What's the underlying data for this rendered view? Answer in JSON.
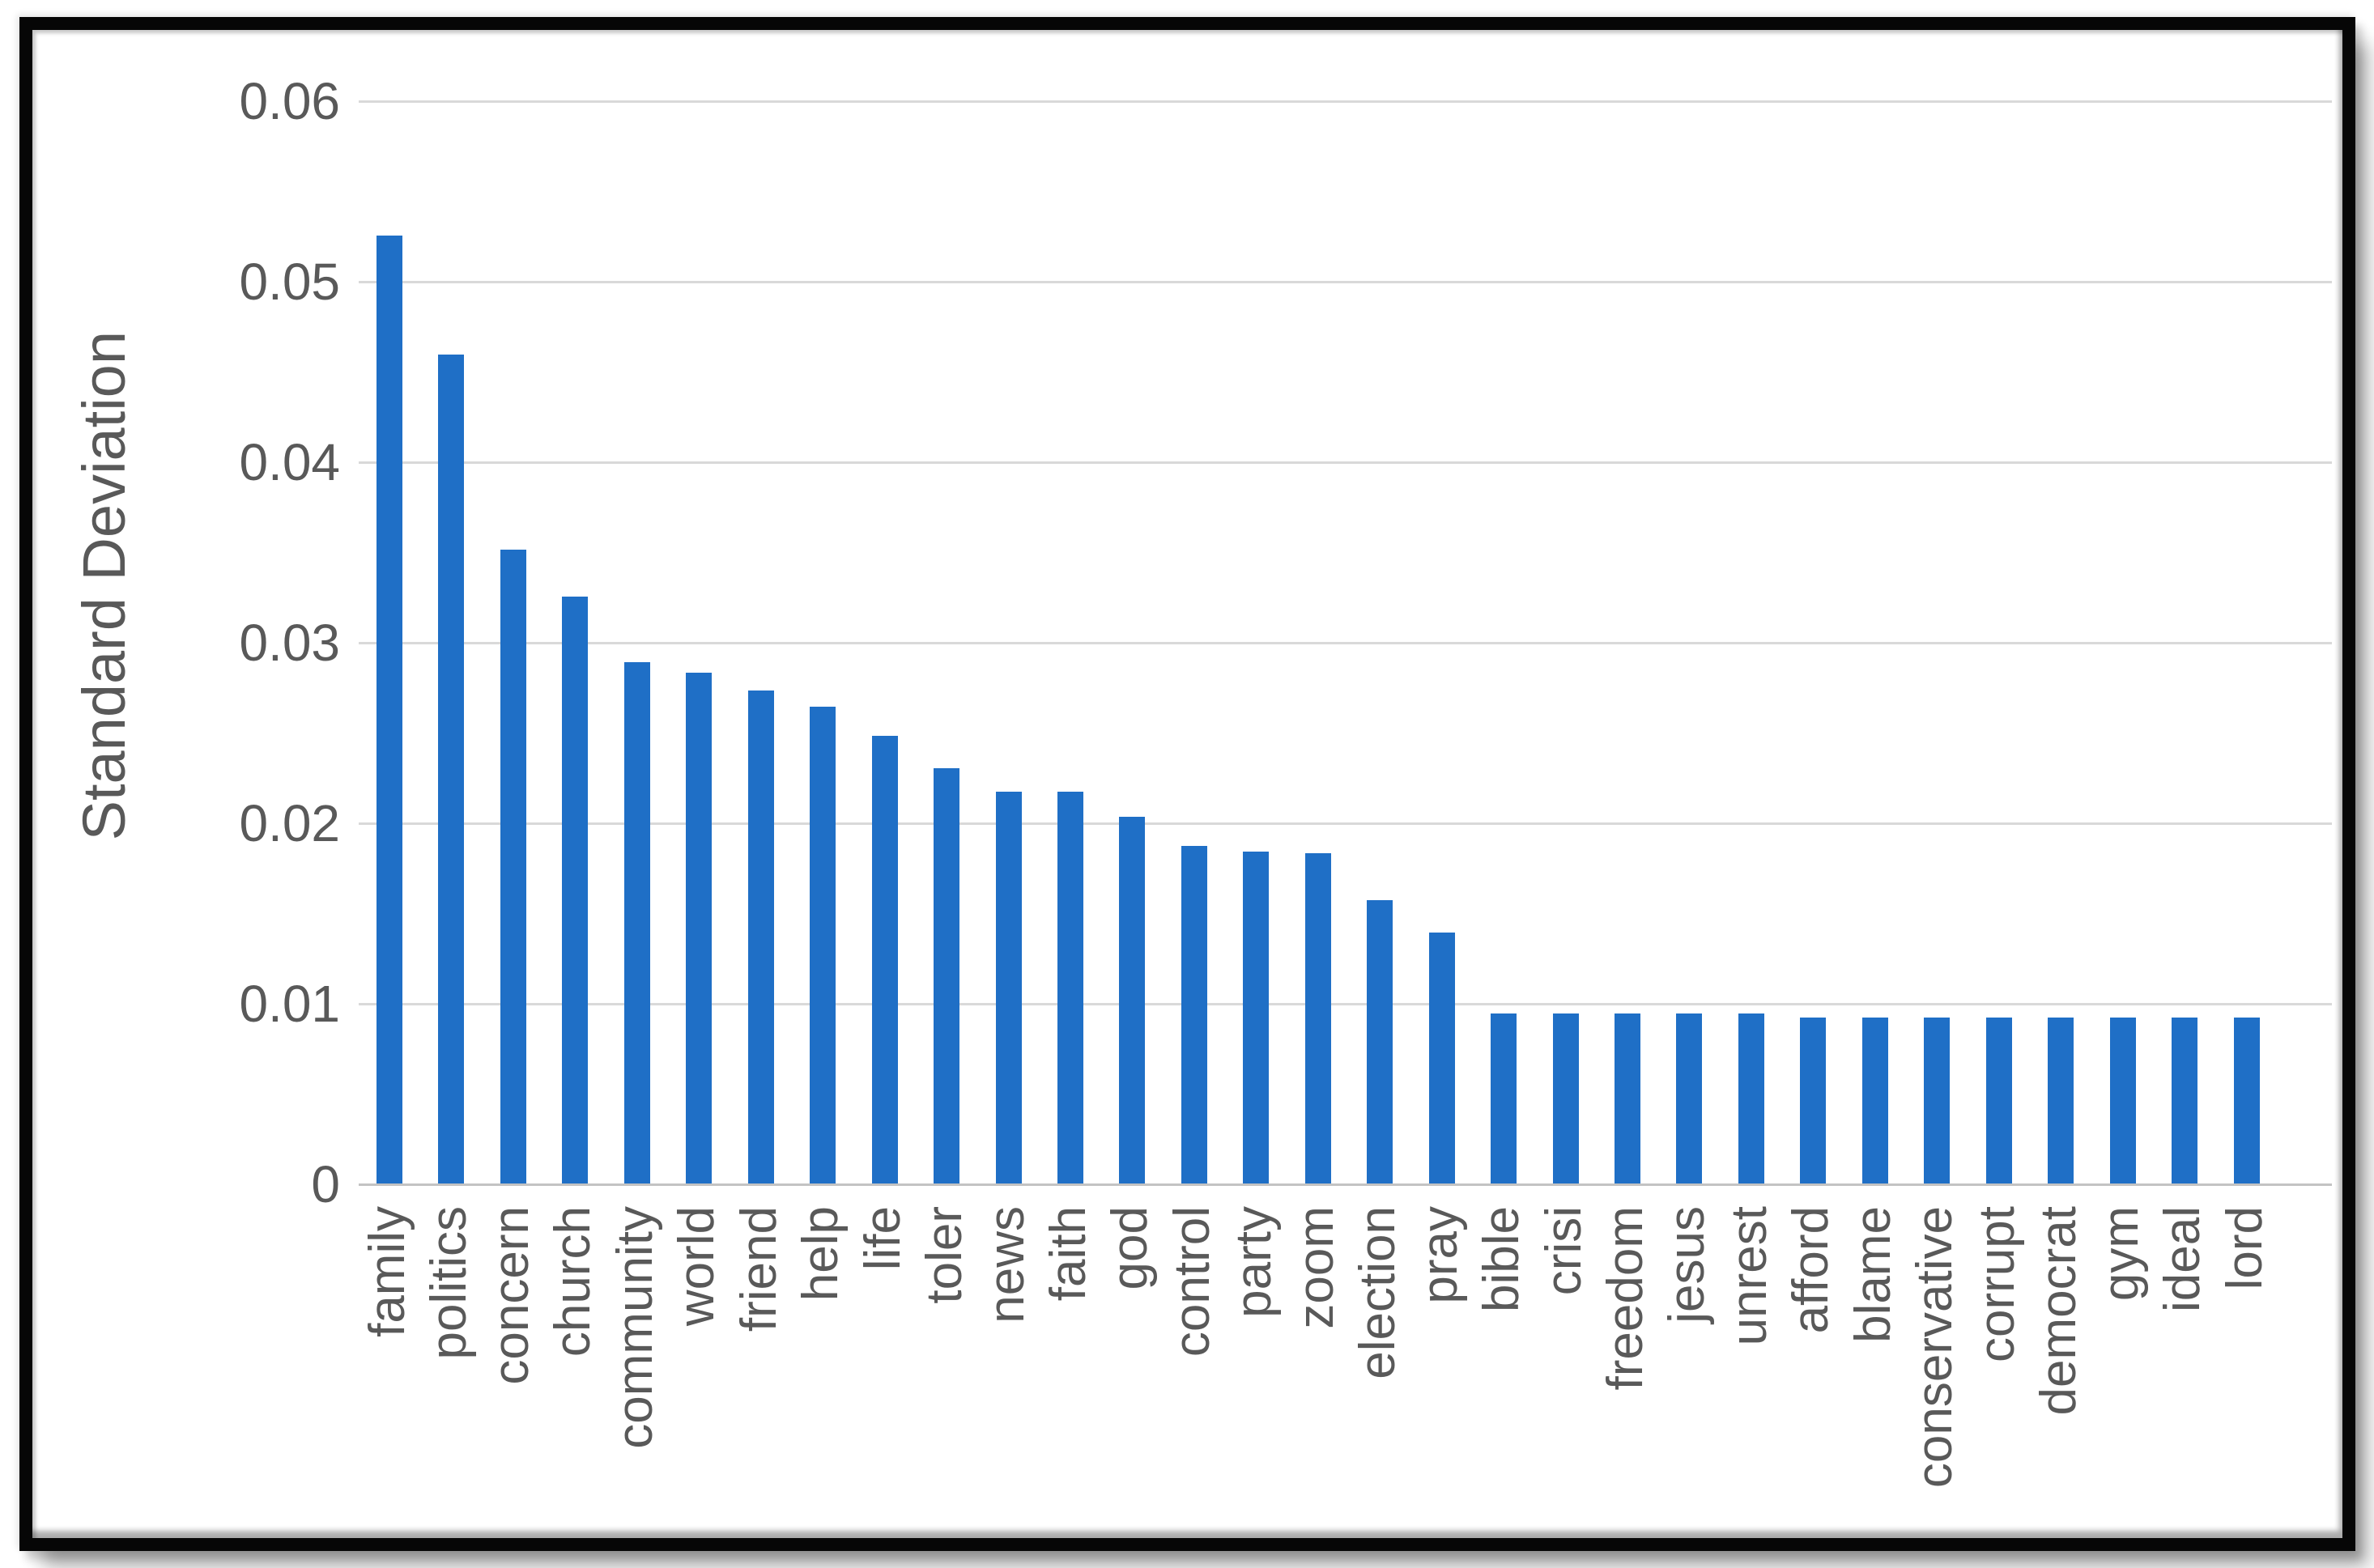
{
  "chart_data": {
    "type": "bar",
    "title": "",
    "xlabel": "",
    "ylabel": "Standard Deviation",
    "categories": [
      "family",
      "politics",
      "concern",
      "church",
      "community",
      "world",
      "friend",
      "help",
      "life",
      "toler",
      "news",
      "faith",
      "god",
      "control",
      "party",
      "zoom",
      "election",
      "pray",
      "bible",
      "crisi",
      "freedom",
      "jesus",
      "unrest",
      "afford",
      "blame",
      "conservative",
      "corrupt",
      "democrat",
      "gym",
      "ideal",
      "lord"
    ],
    "values": [
      0.0525,
      0.0459,
      0.0351,
      0.0325,
      0.0289,
      0.0283,
      0.0273,
      0.0264,
      0.0248,
      0.023,
      0.0217,
      0.0217,
      0.0203,
      0.0187,
      0.0184,
      0.0183,
      0.0157,
      0.0139,
      0.0094,
      0.0094,
      0.0094,
      0.0094,
      0.0094,
      0.0092,
      0.0092,
      0.0092,
      0.0092,
      0.0092,
      0.0092,
      0.0092,
      0.0092
    ],
    "ylim": [
      0,
      0.06
    ],
    "yticks": [
      "0",
      "0.01",
      "0.02",
      "0.03",
      "0.04",
      "0.05",
      "0.06"
    ],
    "grid": "horizontal",
    "legend": "none",
    "bar_color": "#1F6FC6",
    "text_color": "#595959",
    "gridline_color": "#D9D9D9",
    "axis_line_color": "#C3C3C3",
    "frame_color": "#060606",
    "background_color": "#FFFFFF"
  }
}
